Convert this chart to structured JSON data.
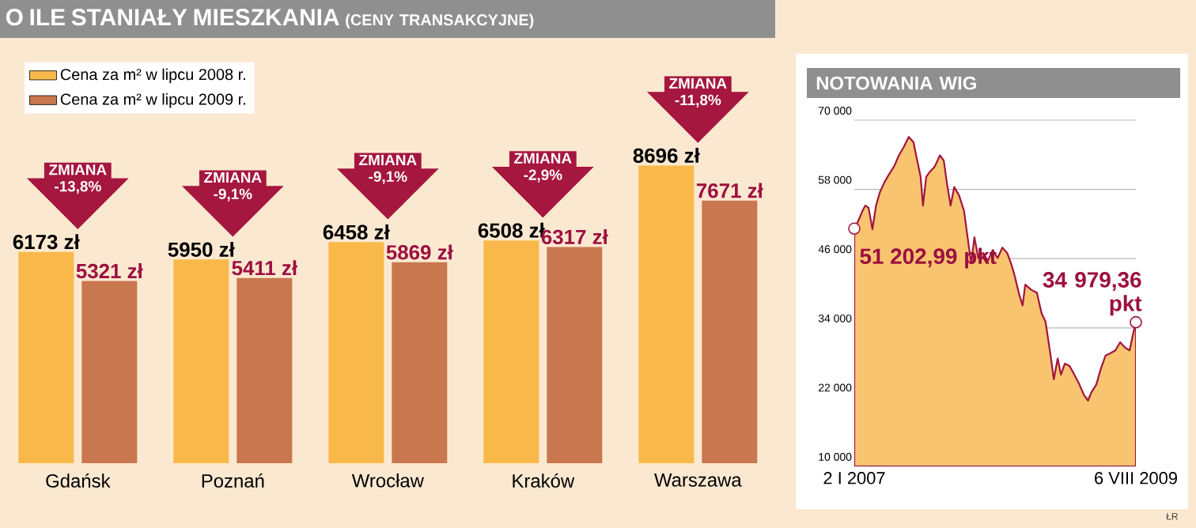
{
  "chart_data": [
    {
      "type": "bar",
      "title": "O ILE STANIAŁY MIESZKANIA",
      "subtitle": "(CENY TRANSAKCYJNE)",
      "categories": [
        "Gdańsk",
        "Poznań",
        "Wrocław",
        "Kraków",
        "Warszawa"
      ],
      "series": [
        {
          "name": "Cena za m² w lipcu 2008 r.",
          "color": "#f9b94a",
          "values": [
            6173,
            5950,
            6458,
            6508,
            8696
          ],
          "value_labels": [
            "6173 zł",
            "5950 zł",
            "6458 zł",
            "6508 zł",
            "8696 zł"
          ]
        },
        {
          "name": "Cena za m² w lipcu 2009 r.",
          "color": "#c8774f",
          "values": [
            5321,
            5411,
            5869,
            6317,
            7671
          ],
          "value_labels": [
            "5321 zł",
            "5411 zł",
            "5869 zł",
            "6317 zł",
            "7671 zł"
          ]
        }
      ],
      "tick_labels": "x",
      "legend": "top left",
      "annotations": [
        "ZMIANA -13,8%",
        "ZMIANA -9,1%",
        "ZMIANA -9,1%",
        "ZMIANA -2,9%",
        "ZMIANA -11,8%"
      ]
    },
    {
      "type": "area",
      "title": "NOTOWANIA WIG",
      "series": [
        {
          "color": "#f8c470",
          "x": [
            "2007-01-02",
            "2007-01-15",
            "2007-01-28",
            "2007-02-08",
            "2007-02-19",
            "2007-03-04",
            "2007-03-16",
            "2007-03-29",
            "2007-04-14",
            "2007-04-30",
            "2007-05-16",
            "2007-06-01",
            "2007-06-17",
            "2007-07-04",
            "2007-07-20",
            "2007-07-31",
            "2007-08-13",
            "2007-08-21",
            "2007-09-01",
            "2007-09-14",
            "2007-09-30",
            "2007-10-17",
            "2007-10-30",
            "2007-11-10",
            "2007-11-22",
            "2007-12-04",
            "2007-12-20",
            "2008-01-06",
            "2008-01-18",
            "2008-01-30",
            "2008-02-10",
            "2008-02-23",
            "2008-03-10",
            "2008-03-26",
            "2008-04-11",
            "2008-04-28",
            "2008-05-14",
            "2008-05-30",
            "2008-06-12",
            "2008-06-23",
            "2008-07-10",
            "2008-07-21",
            "2008-07-30",
            "2008-08-19",
            "2008-09-07",
            "2008-09-23",
            "2008-10-06",
            "2008-10-22",
            "2008-11-03",
            "2008-11-16",
            "2008-11-27",
            "2008-12-10",
            "2008-12-26",
            "2009-01-11",
            "2009-01-28",
            "2009-02-13",
            "2009-02-26",
            "2009-03-09",
            "2009-03-26",
            "2009-04-10",
            "2009-04-26",
            "2009-05-12",
            "2009-05-29",
            "2009-06-14",
            "2009-06-30",
            "2009-07-16",
            "2009-07-27",
            "2009-08-06"
          ],
          "values": [
            51200,
            52500,
            54100,
            55200,
            54800,
            51100,
            55200,
            57500,
            59300,
            60700,
            62000,
            63900,
            65300,
            67100,
            66200,
            63400,
            60200,
            55200,
            60200,
            61100,
            62000,
            63900,
            63000,
            58900,
            55200,
            58400,
            57000,
            54300,
            49700,
            45200,
            49700,
            46100,
            47000,
            45600,
            47400,
            46100,
            47900,
            47000,
            45200,
            43300,
            39700,
            37900,
            41500,
            40600,
            40100,
            36500,
            35100,
            29600,
            25100,
            28700,
            25900,
            27800,
            27400,
            25900,
            24200,
            22300,
            21400,
            22800,
            24200,
            26900,
            29200,
            29600,
            30100,
            31500,
            30600,
            30100,
            32800,
            35000
          ]
        }
      ],
      "xlim": [
        "2007-01-02",
        "2009-08-06"
      ],
      "xticks": [
        {
          "value": "2007-01-02",
          "label": "2 I 2007"
        },
        {
          "value": "2009-08-06",
          "label": "6 VIII 2009"
        }
      ],
      "ylim": [
        10000,
        70000
      ],
      "yticks": [
        {
          "value": 10000,
          "label": "10 000"
        },
        {
          "value": 22000,
          "label": "22 000"
        },
        {
          "value": 34000,
          "label": "34 000"
        },
        {
          "value": 46000,
          "label": "46 000"
        },
        {
          "value": 58000,
          "label": "58 000"
        },
        {
          "value": 70000,
          "label": "70 000"
        }
      ],
      "grid": "y",
      "marker": "none",
      "annotations": [
        {
          "text": "51 202,99 pkt",
          "x": "2007-01-02",
          "y": 51202.99
        },
        {
          "text": "34 979,36 pkt",
          "x": "2009-08-06",
          "y": 34979.36
        },
        "ŁR"
      ]
    }
  ]
}
